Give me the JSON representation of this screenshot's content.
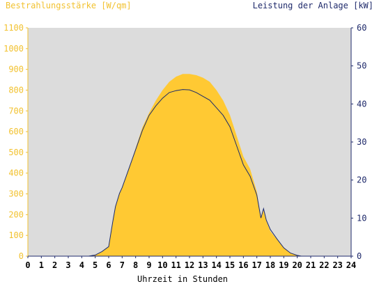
{
  "chart_data": {
    "type": "area",
    "title_left": "Bestrahlungsstärke [W/qm]",
    "title_right": "Leistung der Anlage [kW]",
    "xlabel": "Uhrzeit in Stunden",
    "x_ticks": [
      "0",
      "1",
      "2",
      "3",
      "4",
      "5",
      "6",
      "7",
      "8",
      "9",
      "10",
      "11",
      "12",
      "13",
      "14",
      "15",
      "16",
      "17",
      "18",
      "19",
      "20",
      "21",
      "22",
      "23",
      "24"
    ],
    "y_left_ticks": [
      "0",
      "100",
      "200",
      "300",
      "400",
      "500",
      "600",
      "700",
      "800",
      "900",
      "1000",
      "1100"
    ],
    "y_right_ticks": [
      "0",
      "10",
      "20",
      "30",
      "40",
      "50",
      "60"
    ],
    "xlim": [
      0,
      24
    ],
    "ylim_left": [
      0,
      1100
    ],
    "ylim_right": [
      0,
      60
    ],
    "colors": {
      "irradiance": "#ffc933",
      "power": "#1a2a6c",
      "plot_bg": "#dcdcdc",
      "left_axis": "#f2c230",
      "right_axis": "#1f2a6b"
    },
    "series": [
      {
        "name": "Bestrahlungsstärke [W/qm]",
        "axis": "left",
        "x": [
          0,
          4.5,
          5.0,
          5.5,
          6.0,
          6.3,
          6.5,
          6.8,
          7.0,
          7.5,
          8.0,
          8.5,
          9.0,
          9.5,
          10.0,
          10.5,
          11.0,
          11.5,
          12.0,
          12.5,
          13.0,
          13.5,
          14.0,
          14.5,
          15.0,
          15.5,
          16.0,
          16.5,
          17.0,
          17.3,
          17.5,
          17.7,
          18.0,
          18.5,
          19.0,
          19.5,
          20.0,
          20.3,
          24
        ],
        "y": [
          0,
          0,
          5,
          20,
          45,
          160,
          240,
          300,
          330,
          420,
          520,
          620,
          690,
          750,
          800,
          840,
          865,
          878,
          878,
          872,
          860,
          840,
          800,
          750,
          680,
          580,
          480,
          420,
          310,
          180,
          220,
          170,
          120,
          80,
          40,
          15,
          5,
          0,
          0
        ]
      },
      {
        "name": "Leistung der Anlage [kW]",
        "axis": "right",
        "x": [
          0,
          4.5,
          5.0,
          5.5,
          6.0,
          6.3,
          6.5,
          6.8,
          7.0,
          7.5,
          8.0,
          8.5,
          9.0,
          9.5,
          10.0,
          10.5,
          11.0,
          11.5,
          12.0,
          12.5,
          13.0,
          13.5,
          14.0,
          14.5,
          15.0,
          15.5,
          16.0,
          16.5,
          17.0,
          17.3,
          17.5,
          17.7,
          18.0,
          18.5,
          19.0,
          19.5,
          20.0,
          20.3,
          24
        ],
        "y": [
          0,
          0,
          0.3,
          1.2,
          2.5,
          9,
          13,
          16.5,
          18,
          23,
          28,
          33,
          37,
          39.5,
          41.5,
          43,
          43.5,
          43.8,
          43.7,
          43,
          42,
          41,
          39,
          37,
          34,
          29,
          24,
          21,
          16,
          10,
          12.5,
          9.5,
          7,
          4.5,
          2.2,
          0.8,
          0.2,
          0,
          0
        ]
      }
    ],
    "grid": false
  }
}
